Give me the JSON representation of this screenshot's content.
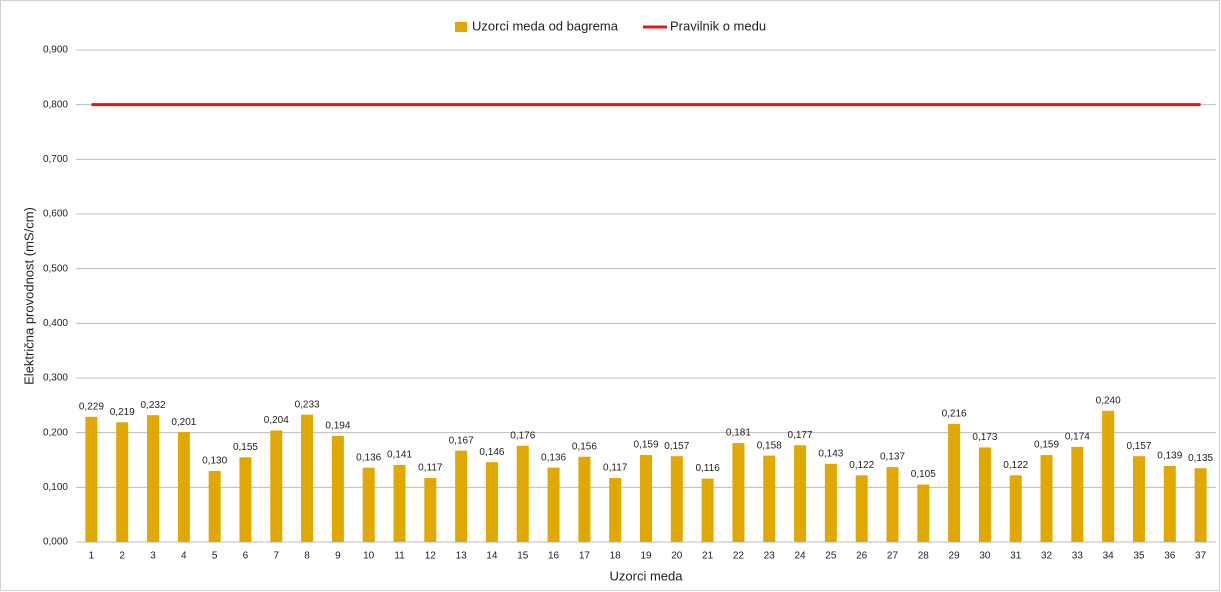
{
  "chart_data": {
    "type": "bar",
    "y_label": "Električna provodnost (mS/cm)",
    "x_label": "Uzorci meda",
    "categories": [
      "1",
      "2",
      "3",
      "4",
      "5",
      "6",
      "7",
      "8",
      "9",
      "10",
      "11",
      "12",
      "13",
      "14",
      "15",
      "16",
      "17",
      "18",
      "19",
      "20",
      "21",
      "22",
      "23",
      "24",
      "25",
      "26",
      "27",
      "28",
      "29",
      "30",
      "31",
      "32",
      "33",
      "34",
      "35",
      "36",
      "37"
    ],
    "series": [
      {
        "name": "Uzorci meda od bagrema",
        "type": "bar",
        "color": "#e0a800",
        "values": [
          0.229,
          0.219,
          0.232,
          0.201,
          0.13,
          0.155,
          0.204,
          0.233,
          0.194,
          0.136,
          0.141,
          0.117,
          0.167,
          0.146,
          0.176,
          0.136,
          0.156,
          0.117,
          0.159,
          0.157,
          0.116,
          0.181,
          0.158,
          0.177,
          0.143,
          0.122,
          0.137,
          0.105,
          0.216,
          0.173,
          0.122,
          0.159,
          0.174,
          0.24,
          0.157,
          0.139,
          0.135
        ],
        "value_labels": [
          "0,229",
          "0,219",
          "0,232",
          "0,201",
          "0,130",
          "0,155",
          "0,204",
          "0,233",
          "0,194",
          "0,136",
          "0,141",
          "0,117",
          "0,167",
          "0,146",
          "0,176",
          "0,136",
          "0,156",
          "0,117",
          "0,159",
          "0,157",
          "0,116",
          "0,181",
          "0,158",
          "0,177",
          "0,143",
          "0,122",
          "0,137",
          "0,105",
          "0,216",
          "0,173",
          "0,122",
          "0,159",
          "0,174",
          "0,240",
          "0,157",
          "0,139",
          "0,135"
        ]
      },
      {
        "name": "Pravilnik o medu",
        "type": "line",
        "color": "#e8141a",
        "values": [
          0.8,
          0.8,
          0.8,
          0.8,
          0.8,
          0.8,
          0.8,
          0.8,
          0.8,
          0.8,
          0.8,
          0.8,
          0.8,
          0.8,
          0.8,
          0.8,
          0.8,
          0.8,
          0.8,
          0.8,
          0.8,
          0.8,
          0.8,
          0.8,
          0.8,
          0.8,
          0.8,
          0.8,
          0.8,
          0.8,
          0.8,
          0.8,
          0.8,
          0.8,
          0.8,
          0.8,
          0.8
        ]
      }
    ],
    "ylim": [
      0,
      0.9
    ],
    "yticks": [
      {
        "value": 0,
        "label": "0,000"
      },
      {
        "value": 0.1,
        "label": "0,100"
      },
      {
        "value": 0.2,
        "label": "0,200"
      },
      {
        "value": 0.3,
        "label": "0,300"
      },
      {
        "value": 0.4,
        "label": "0,400"
      },
      {
        "value": 0.5,
        "label": "0,500"
      },
      {
        "value": 0.6,
        "label": "0,600"
      },
      {
        "value": 0.7,
        "label": "0,700"
      },
      {
        "value": 0.8,
        "label": "0,800"
      },
      {
        "value": 0.9,
        "label": "0,900"
      }
    ],
    "grid": true,
    "legend": "top"
  }
}
